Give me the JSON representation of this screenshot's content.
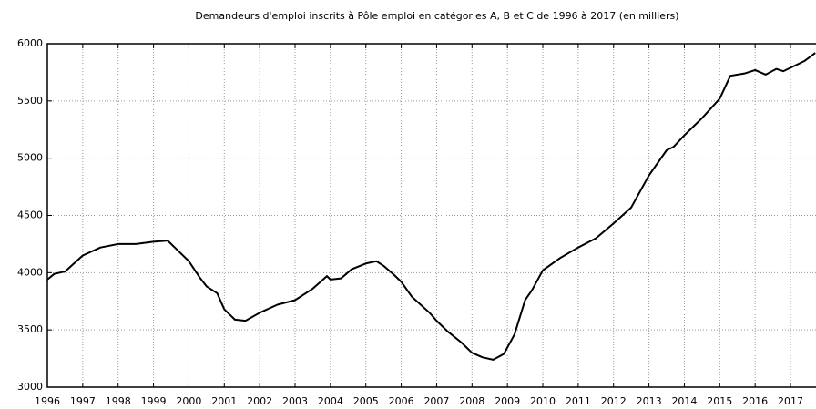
{
  "chart_data": {
    "type": "line",
    "title": "Demandeurs d'emploi inscrits à Pôle emploi en catégories A, B et C de 1996 à 2017 (en milliers)",
    "x": [
      1996.0,
      1996.2,
      1996.5,
      1997.0,
      1997.5,
      1998.0,
      1998.5,
      1999.0,
      1999.4,
      1999.6,
      2000.0,
      2000.3,
      2000.5,
      2000.8,
      2001.0,
      2001.3,
      2001.6,
      2002.0,
      2002.5,
      2003.0,
      2003.5,
      2003.9,
      2004.0,
      2004.3,
      2004.6,
      2005.0,
      2005.3,
      2005.5,
      2005.8,
      2006.0,
      2006.3,
      2006.8,
      2007.0,
      2007.3,
      2007.7,
      2008.0,
      2008.3,
      2008.6,
      2008.9,
      2009.2,
      2009.5,
      2009.7,
      2010.0,
      2010.5,
      2011.0,
      2011.5,
      2012.0,
      2012.5,
      2013.0,
      2013.5,
      2013.7,
      2014.0,
      2014.5,
      2015.0,
      2015.3,
      2015.7,
      2016.0,
      2016.3,
      2016.6,
      2016.8,
      2017.0,
      2017.4,
      2017.7
    ],
    "series": [
      {
        "name": "Demandeurs d'emploi",
        "color": "#000000",
        "values": [
          3940,
          3990,
          4010,
          4150,
          4220,
          4250,
          4250,
          4270,
          4280,
          4220,
          4100,
          3960,
          3880,
          3820,
          3680,
          3590,
          3580,
          3650,
          3720,
          3760,
          3860,
          3970,
          3940,
          3950,
          4030,
          4080,
          4100,
          4060,
          3980,
          3920,
          3790,
          3650,
          3580,
          3490,
          3390,
          3300,
          3260,
          3240,
          3290,
          3460,
          3760,
          3850,
          4020,
          4130,
          4220,
          4300,
          4430,
          4570,
          4850,
          5070,
          5100,
          5200,
          5350,
          5520,
          5720,
          5740,
          5770,
          5730,
          5780,
          5760,
          5790,
          5850,
          5920
        ]
      }
    ],
    "xlim": [
      1996,
      2017.72
    ],
    "xticks": [
      1996,
      1997,
      1998,
      1999,
      2000,
      2001,
      2002,
      2003,
      2004,
      2005,
      2006,
      2007,
      2008,
      2009,
      2010,
      2011,
      2012,
      2013,
      2014,
      2015,
      2016,
      2017
    ],
    "ylim": [
      3000,
      6000
    ],
    "yticks": [
      3000,
      3500,
      4000,
      4500,
      5000,
      5500,
      6000
    ],
    "grid": true
  }
}
